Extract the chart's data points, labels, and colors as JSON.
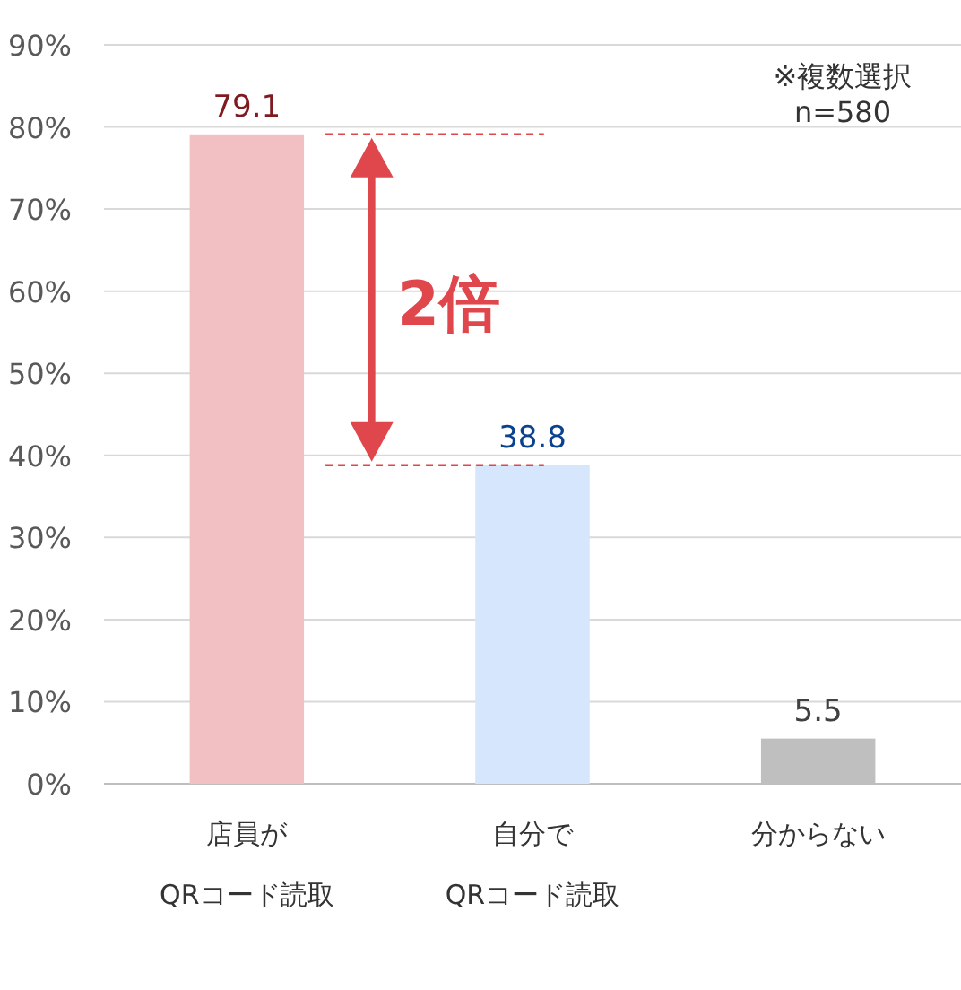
{
  "chart_data": {
    "type": "bar",
    "categories": [
      "店員が\nQRコード読取",
      "自分で\nQRコード読取",
      "分からない"
    ],
    "values": [
      79.1,
      38.8,
      5.5
    ],
    "colors": [
      "#f2c0c3",
      "#d6e6fc",
      "#bfbfbf"
    ],
    "data_labels": true,
    "ylim": [
      0,
      90
    ],
    "yticks": [
      {
        "value": 0,
        "label": "0%"
      },
      {
        "value": 10,
        "label": "10%"
      },
      {
        "value": 20,
        "label": "20%"
      },
      {
        "value": 30,
        "label": "30%"
      },
      {
        "value": 40,
        "label": "40%"
      },
      {
        "value": 50,
        "label": "50%"
      },
      {
        "value": 60,
        "label": "60%"
      },
      {
        "value": 70,
        "label": "70%"
      },
      {
        "value": 80,
        "label": "80%"
      },
      {
        "value": 90,
        "label": "90%"
      }
    ],
    "grid": "y",
    "ref_lines": [
      {
        "axis": "y",
        "value": 79.1,
        "color": "#e0474c",
        "line_style": "dashed"
      },
      {
        "axis": "y",
        "value": 38.8,
        "color": "#e0474c",
        "line_style": "dashed"
      }
    ],
    "annotations": [
      "※複数選択",
      "n=580",
      "2倍"
    ]
  }
}
